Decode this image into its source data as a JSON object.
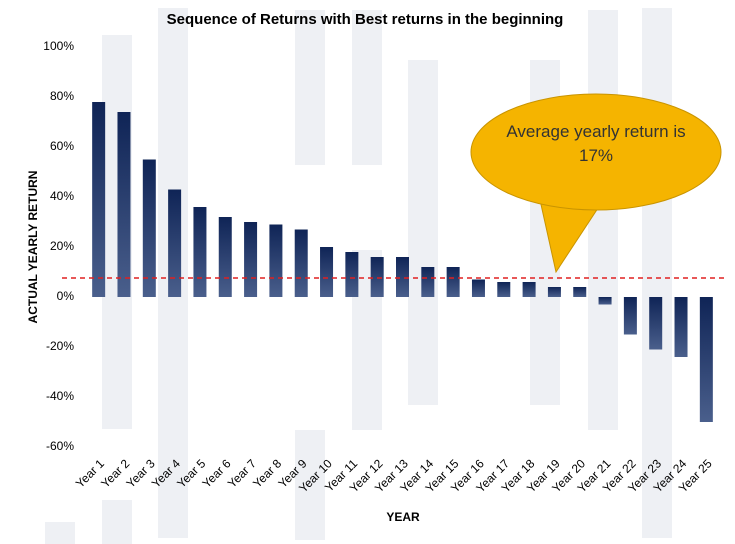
{
  "chart_data": {
    "type": "bar",
    "title": "Sequence of Returns with Best returns in the beginning",
    "y_label": "ACTUAL  YEARLY RETURN",
    "x_label": "YEAR",
    "annotation": "Average yearly return is 17%",
    "categories": [
      "Year 1",
      "Year 2",
      "Year 3",
      "Year 4",
      "Year 5",
      "Year 6",
      "Year 7",
      "Year 8",
      "Year 9",
      "Year 10",
      "Year 11",
      "Year 12",
      "Year 13",
      "Year 14",
      "Year 15",
      "Year 16",
      "Year 17",
      "Year 18",
      "Year 19",
      "Year 20",
      "Year 21",
      "Year 22",
      "Year 23",
      "Year 24",
      "Year 25"
    ],
    "values": [
      78,
      74,
      55,
      43,
      36,
      32,
      30,
      29,
      27,
      20,
      18,
      16,
      16,
      12,
      12,
      7,
      6,
      6,
      4,
      4,
      -3,
      -15,
      -21,
      -24,
      -50
    ],
    "color": "#13295b",
    "reference_line": 7.6,
    "reference_color": "#e02020",
    "ylim": [
      -60,
      100
    ],
    "yticks": [
      {
        "value": -60,
        "label": "-60%"
      },
      {
        "value": -40,
        "label": "-40%"
      },
      {
        "value": -20,
        "label": "-20%"
      },
      {
        "value": 0,
        "label": "0%"
      },
      {
        "value": 20,
        "label": "20%"
      },
      {
        "value": 40,
        "label": "40%"
      },
      {
        "value": 60,
        "label": "60%"
      },
      {
        "value": 80,
        "label": "80%"
      },
      {
        "value": 100,
        "label": "100%"
      }
    ],
    "grid": false
  }
}
